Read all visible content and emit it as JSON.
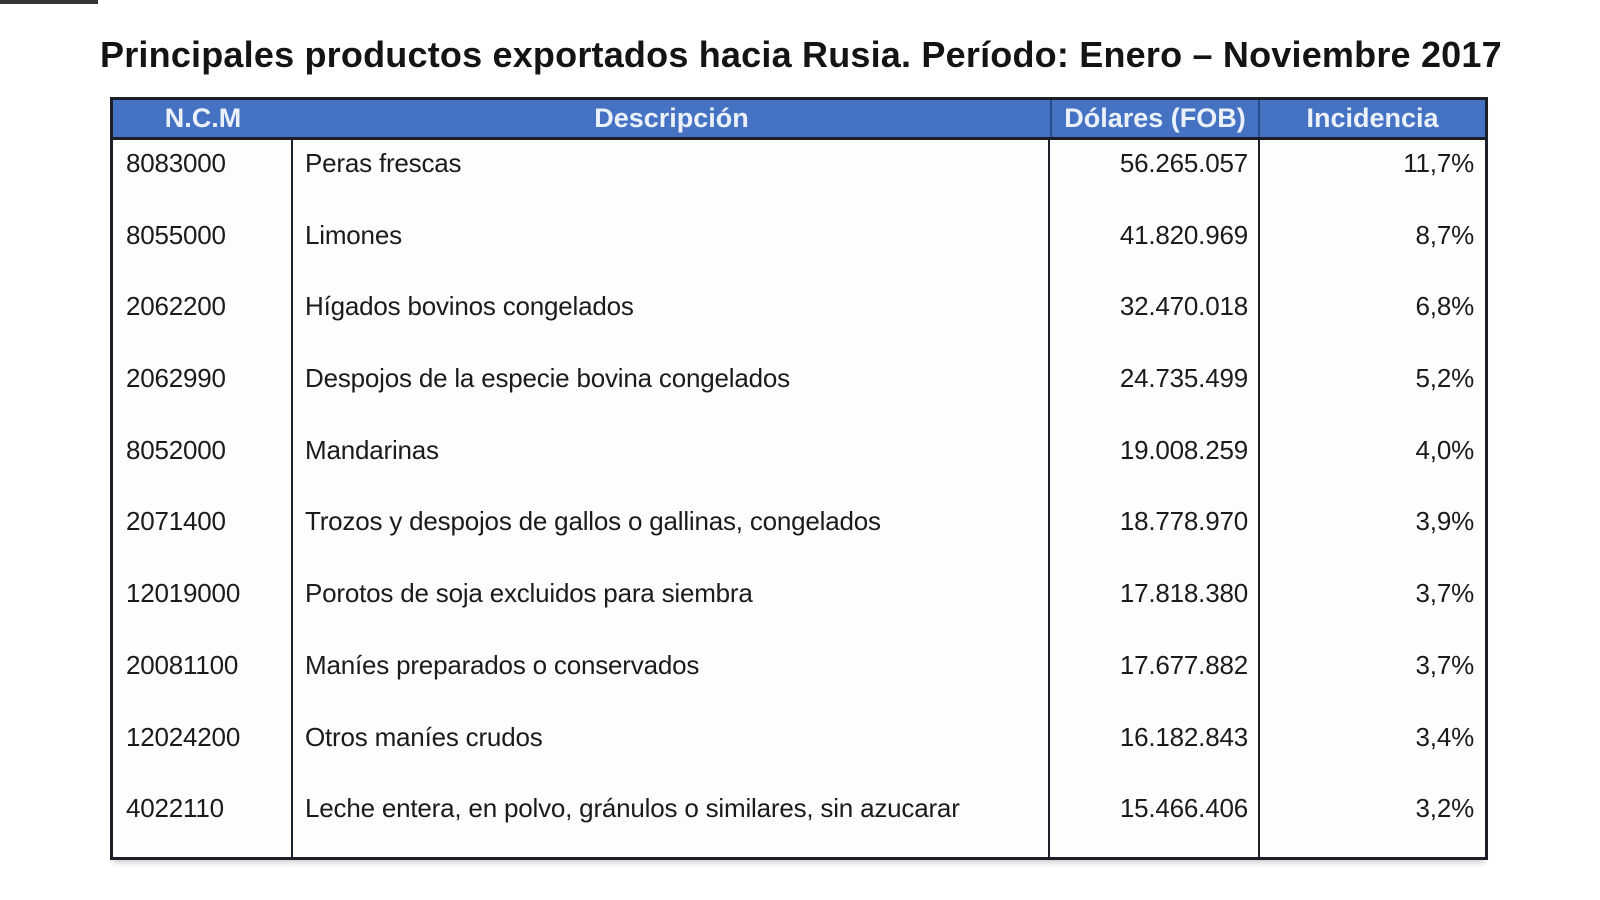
{
  "title": "Principales productos exportados hacia Rusia. Período: Enero – Noviembre 2017",
  "colors": {
    "header_bg": "#4672C4",
    "header_text": "#EAF1FB",
    "border": "#1D1F28",
    "body_text": "#1B1B1B"
  },
  "table": {
    "headers": [
      "N.C.M",
      "Descripción",
      "Dólares (FOB)",
      "Incidencia"
    ],
    "rows": [
      {
        "ncm": "8083000",
        "descripcion": "Peras frescas",
        "dolares": "56.265.057",
        "incidencia": "11,7%"
      },
      {
        "ncm": "8055000",
        "descripcion": "Limones",
        "dolares": "41.820.969",
        "incidencia": "8,7%"
      },
      {
        "ncm": "2062200",
        "descripcion": "Hígados bovinos congelados",
        "dolares": "32.470.018",
        "incidencia": "6,8%"
      },
      {
        "ncm": "2062990",
        "descripcion": "Despojos de la especie bovina congelados",
        "dolares": "24.735.499",
        "incidencia": "5,2%"
      },
      {
        "ncm": "8052000",
        "descripcion": "Mandarinas",
        "dolares": "19.008.259",
        "incidencia": "4,0%"
      },
      {
        "ncm": "2071400",
        "descripcion": "Trozos y despojos de gallos o gallinas, congelados",
        "dolares": "18.778.970",
        "incidencia": "3,9%"
      },
      {
        "ncm": "12019000",
        "descripcion": "Porotos de soja excluidos para siembra",
        "dolares": "17.818.380",
        "incidencia": "3,7%"
      },
      {
        "ncm": "20081100",
        "descripcion": "Maníes preparados o conservados",
        "dolares": "17.677.882",
        "incidencia": "3,7%"
      },
      {
        "ncm": "12024200",
        "descripcion": "Otros maníes crudos",
        "dolares": "16.182.843",
        "incidencia": "3,4%"
      },
      {
        "ncm": "4022110",
        "descripcion": "Leche entera, en polvo, gránulos o similares, sin azucarar",
        "dolares": "15.466.406",
        "incidencia": "3,2%"
      }
    ]
  }
}
